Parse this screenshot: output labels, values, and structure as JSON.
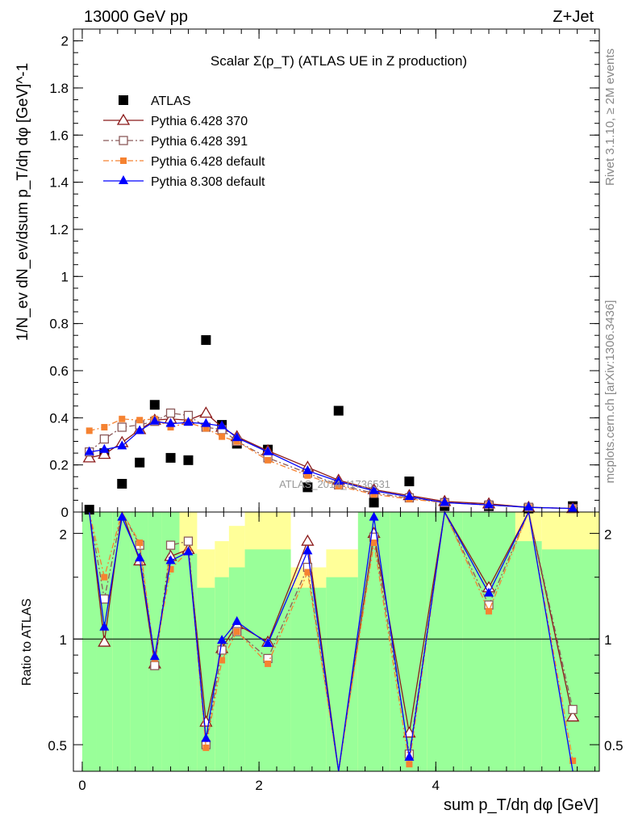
{
  "header": {
    "left": "13000 GeV pp",
    "right": "Z+Jet"
  },
  "side_labels": {
    "rivet": "Rivet 3.1.10, ≥ 2M events",
    "mcplots": "mcplots.cern.ch [arXiv:1306.3436]"
  },
  "watermark": "ATLAS_2014_I1736531",
  "chart_data": {
    "type": "scatter",
    "title": "Scalar Σ(p_T) (ATLAS UE in Z production)",
    "main_panel": {
      "ylabel": "1/N_ev dN_ev/dsum p_T/dη dφ [GeV]^-1",
      "ylim": [
        0,
        2.05
      ],
      "yticks": [
        "0",
        "0.2",
        "0.4",
        "0.6",
        "0.8",
        "1",
        "1.2",
        "1.4",
        "1.6",
        "1.8",
        "2"
      ],
      "legend_position": "top-left",
      "series": [
        {
          "name": "ATLAS",
          "color": "#000000",
          "marker": "filled-square",
          "line": "none",
          "x": [
            0.08,
            0.25,
            0.45,
            0.65,
            0.82,
            1.0,
            1.2,
            1.4,
            1.58,
            1.75,
            2.1,
            2.55,
            2.9,
            3.3,
            3.7,
            4.1,
            4.6,
            5.05,
            5.55
          ],
          "y": [
            0.01,
            0.25,
            0.12,
            0.21,
            0.455,
            0.23,
            0.22,
            0.73,
            0.37,
            0.29,
            0.265,
            0.105,
            0.43,
            0.04,
            0.13,
            0.025,
            0.025,
            0.015,
            0.025
          ]
        },
        {
          "name": "Pythia 6.428 370",
          "color": "#8b1a1a",
          "marker": "open-triangle",
          "line": "solid",
          "x": [
            0.08,
            0.25,
            0.45,
            0.65,
            0.82,
            1.0,
            1.2,
            1.4,
            1.58,
            1.75,
            2.1,
            2.55,
            2.9,
            3.3,
            3.7,
            4.1,
            4.6,
            5.05,
            5.55
          ],
          "y": [
            0.23,
            0.245,
            0.295,
            0.35,
            0.39,
            0.395,
            0.39,
            0.42,
            0.36,
            0.32,
            0.26,
            0.19,
            0.135,
            0.095,
            0.07,
            0.045,
            0.035,
            0.02,
            0.015
          ]
        },
        {
          "name": "Pythia 6.428 391",
          "color": "#8b5a5a",
          "marker": "open-square",
          "line": "dash-dot",
          "x": [
            0.08,
            0.25,
            0.45,
            0.65,
            0.82,
            1.0,
            1.2,
            1.4,
            1.58,
            1.75,
            2.1,
            2.55,
            2.9,
            3.3,
            3.7,
            4.1,
            4.6,
            5.05,
            5.55
          ],
          "y": [
            0.255,
            0.31,
            0.36,
            0.37,
            0.385,
            0.42,
            0.41,
            0.36,
            0.35,
            0.3,
            0.23,
            0.165,
            0.115,
            0.08,
            0.06,
            0.04,
            0.03,
            0.02,
            0.015
          ]
        },
        {
          "name": "Pythia 6.428 default",
          "color": "#f58231",
          "marker": "filled-square-small",
          "line": "dash-dot",
          "x": [
            0.08,
            0.25,
            0.45,
            0.65,
            0.82,
            1.0,
            1.2,
            1.4,
            1.58,
            1.75,
            2.1,
            2.55,
            2.9,
            3.3,
            3.7,
            4.1,
            4.6,
            5.05,
            5.55
          ],
          "y": [
            0.345,
            0.36,
            0.395,
            0.39,
            0.395,
            0.36,
            0.38,
            0.355,
            0.32,
            0.3,
            0.22,
            0.155,
            0.11,
            0.075,
            0.055,
            0.04,
            0.03,
            0.02,
            0.015
          ]
        },
        {
          "name": "Pythia 8.308 default",
          "color": "#0000ff",
          "marker": "filled-triangle",
          "line": "solid",
          "x": [
            0.08,
            0.25,
            0.45,
            0.65,
            0.82,
            1.0,
            1.2,
            1.4,
            1.58,
            1.75,
            2.1,
            2.55,
            2.9,
            3.3,
            3.7,
            4.1,
            4.6,
            5.05,
            5.55
          ],
          "y": [
            0.255,
            0.265,
            0.28,
            0.345,
            0.385,
            0.375,
            0.38,
            0.375,
            0.365,
            0.315,
            0.255,
            0.175,
            0.13,
            0.09,
            0.065,
            0.04,
            0.03,
            0.02,
            0.015
          ]
        }
      ]
    },
    "ratio_panel": {
      "ylabel": "Ratio to ATLAS",
      "xlabel": "sum p_T/dη dφ [GeV]",
      "ylim": [
        0.42,
        2.3
      ],
      "yticks": [
        "0.5",
        "1",
        "2"
      ],
      "xlim": [
        -0.1,
        5.85
      ],
      "xticks": [
        "0",
        "2",
        "4"
      ],
      "reference_line": 1,
      "bands": {
        "bin_edges": [
          0,
          0.16,
          0.34,
          0.54,
          0.74,
          0.9,
          1.1,
          1.3,
          1.5,
          1.66,
          1.84,
          2.36,
          2.76,
          3.12,
          3.48,
          3.9,
          4.3,
          4.9,
          5.2,
          5.85
        ],
        "green": [
          [
            0.42,
            2.3
          ],
          [
            0.42,
            2.3
          ],
          [
            0.42,
            2.3
          ],
          [
            0.42,
            2.3
          ],
          [
            0.42,
            2.3
          ],
          [
            0.42,
            2.3
          ],
          [
            0.42,
            1.75
          ],
          [
            0.42,
            1.4
          ],
          [
            0.42,
            1.5
          ],
          [
            0.42,
            1.6
          ],
          [
            0.42,
            1.8
          ],
          [
            0.42,
            1.4
          ],
          [
            0.42,
            1.5
          ],
          [
            0.42,
            2.3
          ],
          [
            0.42,
            2.3
          ],
          [
            0.42,
            2.3
          ],
          [
            0.42,
            2.3
          ],
          [
            0.42,
            1.9
          ],
          [
            0.42,
            1.8
          ]
        ],
        "yellow": [
          [
            0.42,
            2.3
          ],
          [
            0.42,
            2.3
          ],
          [
            0.42,
            2.3
          ],
          [
            0.42,
            2.3
          ],
          [
            0.42,
            2.3
          ],
          [
            0.42,
            2.3
          ],
          [
            0.42,
            2.3
          ],
          [
            0.42,
            1.8
          ],
          [
            0.42,
            1.9
          ],
          [
            0.42,
            2.1
          ],
          [
            0.42,
            2.3
          ],
          [
            0.42,
            1.6
          ],
          [
            0.42,
            1.8
          ],
          [
            0.42,
            2.3
          ],
          [
            0.42,
            2.3
          ],
          [
            0.42,
            2.3
          ],
          [
            0.42,
            2.3
          ],
          [
            0.42,
            2.3
          ],
          [
            0.42,
            2.3
          ]
        ]
      },
      "series": [
        {
          "name": "Pythia 6.428 370",
          "x": [
            0.08,
            0.25,
            0.45,
            0.65,
            0.82,
            1.0,
            1.2,
            1.4,
            1.58,
            1.75,
            2.1,
            2.55,
            2.9,
            3.3,
            3.7,
            4.1,
            4.6,
            5.05,
            5.55
          ],
          "y": [
            2.3,
            0.98,
            2.3,
            1.67,
            0.85,
            1.72,
            1.8,
            0.58,
            0.94,
            1.1,
            0.98,
            1.9,
            0.42,
            2.0,
            0.54,
            2.3,
            1.4,
            2.3,
            0.6
          ]
        },
        {
          "name": "Pythia 6.428 391",
          "x": [
            0.08,
            0.25,
            0.45,
            0.65,
            0.82,
            1.0,
            1.2,
            1.4,
            1.58,
            1.75,
            2.1,
            2.55,
            2.9,
            3.3,
            3.7,
            4.1,
            4.6,
            5.05,
            5.55
          ],
          "y": [
            2.3,
            1.3,
            2.3,
            1.85,
            0.84,
            1.85,
            1.9,
            0.5,
            0.93,
            1.05,
            0.88,
            1.6,
            0.42,
            1.95,
            0.47,
            2.3,
            1.25,
            2.3,
            0.63
          ]
        },
        {
          "name": "Pythia 6.428 default",
          "x": [
            0.08,
            0.25,
            0.45,
            0.65,
            0.82,
            1.0,
            1.2,
            1.4,
            1.58,
            1.75,
            2.1,
            2.55,
            2.9,
            3.3,
            3.7,
            4.1,
            4.6,
            5.05,
            5.55
          ],
          "y": [
            2.3,
            1.5,
            2.3,
            1.88,
            0.88,
            1.58,
            1.78,
            0.49,
            0.87,
            1.05,
            0.85,
            1.55,
            0.42,
            1.88,
            0.44,
            2.3,
            1.2,
            2.3,
            0.45
          ]
        },
        {
          "name": "Pythia 8.308 default",
          "x": [
            0.08,
            0.25,
            0.45,
            0.65,
            0.82,
            1.0,
            1.2,
            1.4,
            1.58,
            1.75,
            2.1,
            2.55,
            2.9,
            3.3,
            3.7,
            4.1,
            4.6,
            5.05,
            5.55
          ],
          "y": [
            2.3,
            1.08,
            2.22,
            1.7,
            0.89,
            1.67,
            1.77,
            0.52,
            0.99,
            1.12,
            0.97,
            1.78,
            0.42,
            2.22,
            0.46,
            2.3,
            1.35,
            2.3,
            0.36
          ]
        }
      ]
    }
  }
}
